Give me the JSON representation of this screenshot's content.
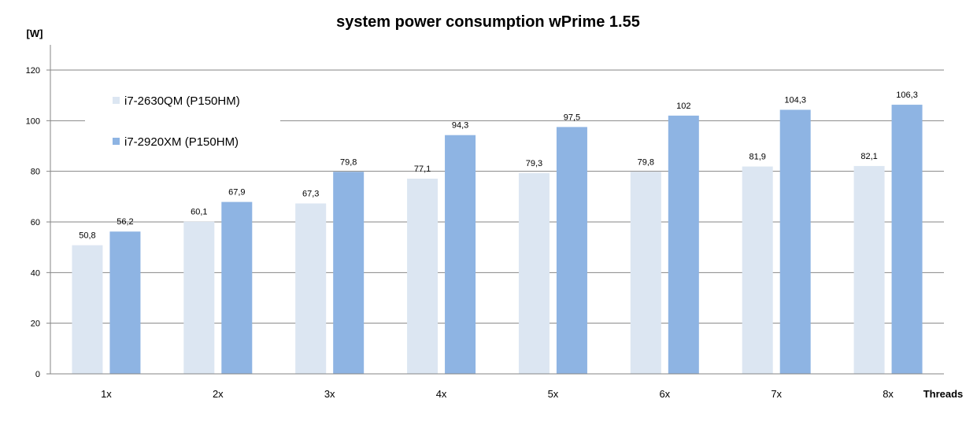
{
  "chart_data": {
    "type": "bar",
    "title": "system power consumption wPrime 1.55",
    "ylabel": "[W]",
    "xlabel": "Threads",
    "categories": [
      "1x",
      "2x",
      "3x",
      "4x",
      "5x",
      "6x",
      "7x",
      "8x"
    ],
    "series": [
      {
        "name": "i7-2630QM (P150HM)",
        "color": "#dce6f2",
        "values": [
          50.8,
          60.1,
          67.3,
          77.1,
          79.3,
          79.8,
          81.9,
          82.1
        ],
        "labels": [
          "50,8",
          "60,1",
          "67,3",
          "77,1",
          "79,3",
          "79,8",
          "81,9",
          "82,1"
        ]
      },
      {
        "name": "i7-2920XM (P150HM)",
        "color": "#8eb4e3",
        "values": [
          56.2,
          67.9,
          79.8,
          94.3,
          97.5,
          102,
          104.3,
          106.3
        ],
        "labels": [
          "56,2",
          "67,9",
          "79,8",
          "94,3",
          "97,5",
          "102",
          "104,3",
          "106,3"
        ]
      }
    ],
    "ylim": [
      0,
      120
    ],
    "yticks": [
      0,
      20,
      40,
      60,
      80,
      100,
      120
    ],
    "grid": true,
    "legend_position": "top-left"
  }
}
